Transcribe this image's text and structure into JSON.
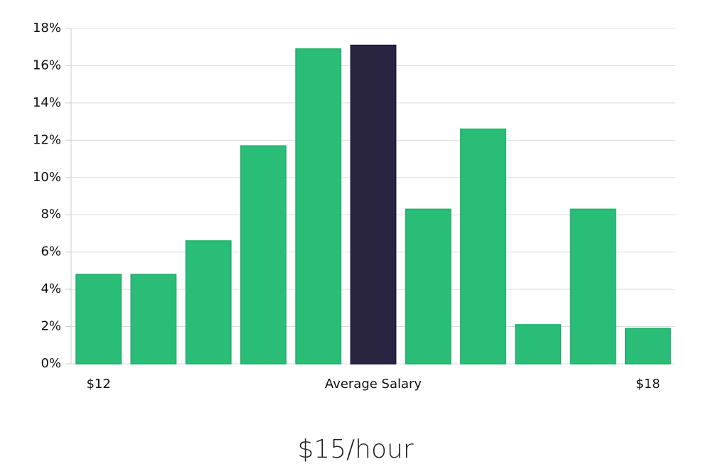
{
  "chart_data": {
    "type": "bar",
    "categories": [
      "$12",
      null,
      null,
      null,
      null,
      "Average Salary",
      null,
      null,
      null,
      null,
      "$18"
    ],
    "values": [
      4.8,
      4.8,
      6.6,
      11.7,
      16.9,
      17.1,
      8.3,
      12.6,
      2.1,
      8.3,
      1.9
    ],
    "colors": [
      "#2abd77",
      "#2abd77",
      "#2abd77",
      "#2abd77",
      "#2abd77",
      "#29243f",
      "#2abd77",
      "#2abd77",
      "#2abd77",
      "#2abd77",
      "#2abd77"
    ],
    "ylim": [
      0,
      18
    ],
    "yticks": [
      {
        "value": 0,
        "label": "0%"
      },
      {
        "value": 2,
        "label": "2%"
      },
      {
        "value": 4,
        "label": "4%"
      },
      {
        "value": 6,
        "label": "6%"
      },
      {
        "value": 8,
        "label": "8%"
      },
      {
        "value": 10,
        "label": "10%"
      },
      {
        "value": 12,
        "label": "12%"
      },
      {
        "value": 14,
        "label": "14%"
      },
      {
        "value": 16,
        "label": "16%"
      },
      {
        "value": 18,
        "label": "18%"
      }
    ],
    "grid": true,
    "caption": "$15/hour"
  }
}
